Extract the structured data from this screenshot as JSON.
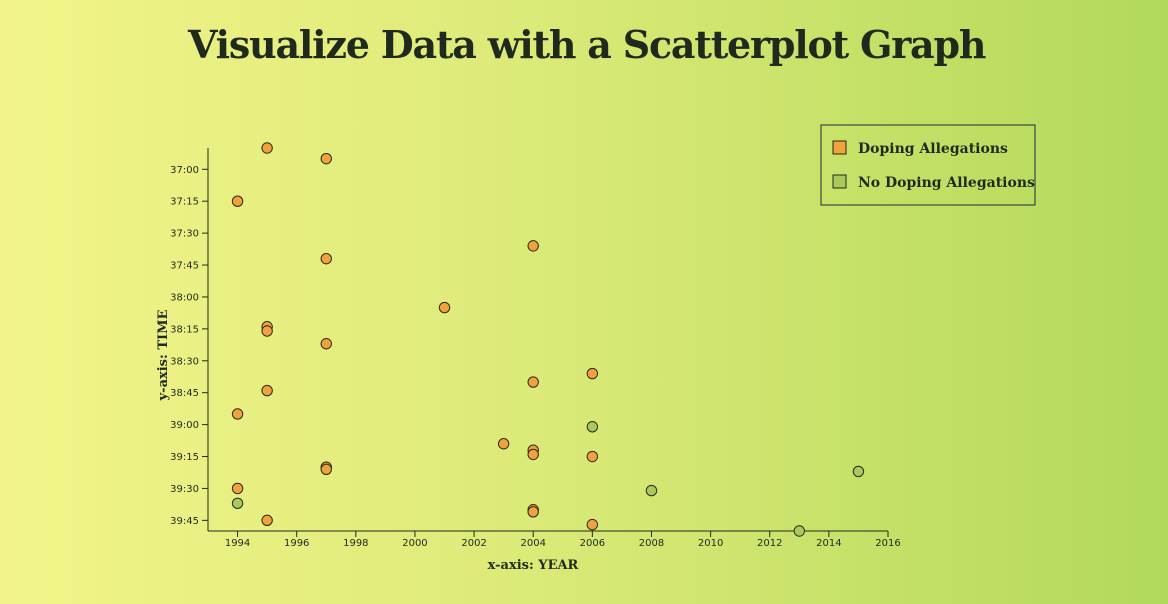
{
  "page": {
    "title": "Visualize Data with a Scatterplot Graph"
  },
  "chart_data": {
    "type": "scatter",
    "xlabel": "x-axis: YEAR",
    "ylabel": "y-axis: TIME",
    "xlim": [
      1993,
      2016
    ],
    "ylim_seconds": [
      2210,
      2390
    ],
    "x_ticks": [
      1994,
      1996,
      1998,
      2000,
      2002,
      2004,
      2006,
      2008,
      2010,
      2012,
      2014,
      2016
    ],
    "y_ticks": [
      "37:00",
      "37:15",
      "37:30",
      "37:45",
      "38:00",
      "38:15",
      "38:30",
      "38:45",
      "39:00",
      "39:15",
      "39:30",
      "39:45"
    ],
    "y_reversed": true,
    "legend_position": "top-right",
    "series": [
      {
        "name": "Doping Allegations",
        "color": "#f0a23c",
        "points": [
          {
            "x": 1995,
            "y": "36:50"
          },
          {
            "x": 1997,
            "y": "36:55"
          },
          {
            "x": 1994,
            "y": "37:15"
          },
          {
            "x": 2004,
            "y": "37:36"
          },
          {
            "x": 1997,
            "y": "37:42"
          },
          {
            "x": 2001,
            "y": "38:05"
          },
          {
            "x": 1995,
            "y": "38:14"
          },
          {
            "x": 1995,
            "y": "38:16"
          },
          {
            "x": 1997,
            "y": "38:22"
          },
          {
            "x": 2006,
            "y": "38:36"
          },
          {
            "x": 2004,
            "y": "38:40"
          },
          {
            "x": 1995,
            "y": "38:44"
          },
          {
            "x": 1994,
            "y": "38:55"
          },
          {
            "x": 2003,
            "y": "39:09"
          },
          {
            "x": 2004,
            "y": "39:12"
          },
          {
            "x": 2004,
            "y": "39:14"
          },
          {
            "x": 2006,
            "y": "39:15"
          },
          {
            "x": 1997,
            "y": "39:20"
          },
          {
            "x": 1997,
            "y": "39:21"
          },
          {
            "x": 1994,
            "y": "39:30"
          },
          {
            "x": 2004,
            "y": "39:40"
          },
          {
            "x": 2004,
            "y": "39:41"
          },
          {
            "x": 1995,
            "y": "39:45"
          },
          {
            "x": 2006,
            "y": "39:47"
          }
        ]
      },
      {
        "name": "No Doping Allegations",
        "color": "#a8c95c",
        "points": [
          {
            "x": 2006,
            "y": "39:01"
          },
          {
            "x": 2015,
            "y": "39:22"
          },
          {
            "x": 2008,
            "y": "39:31"
          },
          {
            "x": 1994,
            "y": "39:37"
          },
          {
            "x": 2013,
            "y": "39:50"
          }
        ]
      }
    ]
  }
}
